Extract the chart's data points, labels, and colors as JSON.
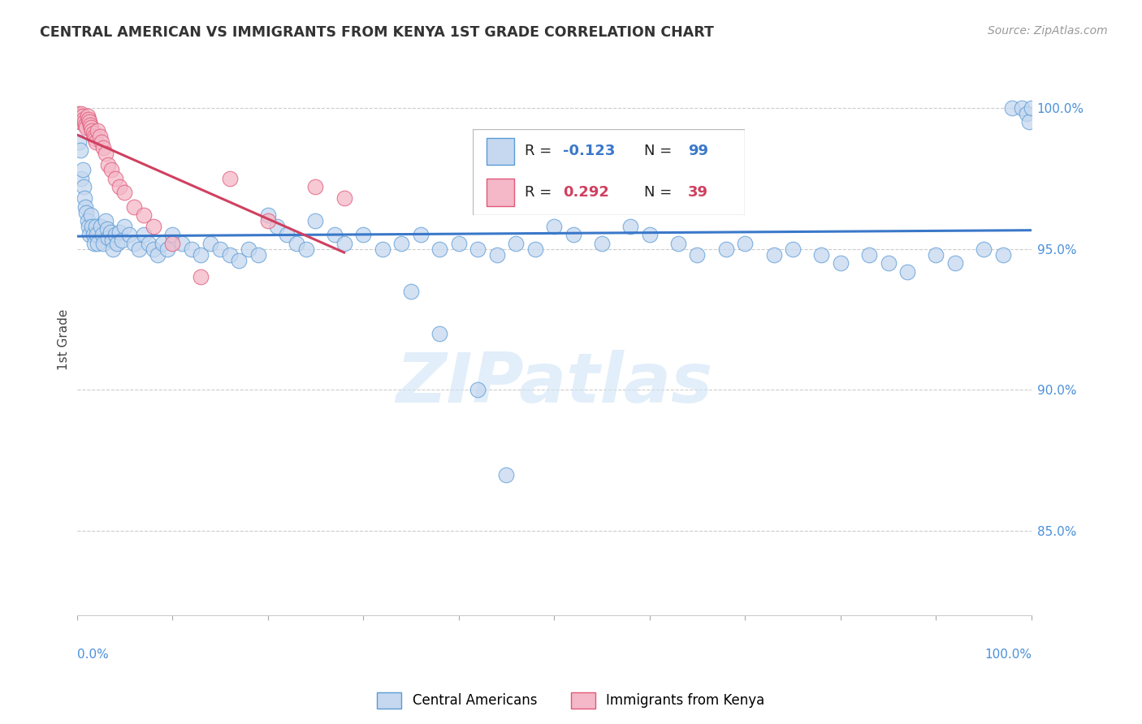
{
  "title": "CENTRAL AMERICAN VS IMMIGRANTS FROM KENYA 1ST GRADE CORRELATION CHART",
  "source": "Source: ZipAtlas.com",
  "ylabel": "1st Grade",
  "watermark": "ZIPatlas",
  "legend_blue_label": "Central Americans",
  "legend_pink_label": "Immigrants from Kenya",
  "R_blue": -0.123,
  "N_blue": 99,
  "R_pink": 0.292,
  "N_pink": 39,
  "blue_fill": "#c5d8f0",
  "blue_edge": "#5b9bd5",
  "pink_fill": "#f4b8c8",
  "pink_edge": "#e05878",
  "blue_line": "#3a78c9",
  "pink_line": "#d04060",
  "xmin": 0.0,
  "xmax": 1.0,
  "ymin": 0.82,
  "ymax": 1.016,
  "ytick_vals": [
    1.0,
    0.95,
    0.9,
    0.85
  ],
  "ytick_labels": [
    "100.0%",
    "95.0%",
    "90.0%",
    "85.0%"
  ],
  "blue_x": [
    0.002,
    0.003,
    0.004,
    0.005,
    0.006,
    0.007,
    0.008,
    0.009,
    0.01,
    0.011,
    0.012,
    0.013,
    0.015,
    0.016,
    0.017,
    0.018,
    0.02,
    0.021,
    0.022,
    0.025,
    0.027,
    0.028,
    0.03,
    0.032,
    0.033,
    0.035,
    0.037,
    0.038,
    0.04,
    0.042,
    0.045,
    0.047,
    0.05,
    0.055,
    0.06,
    0.065,
    0.07,
    0.075,
    0.08,
    0.085,
    0.09,
    0.095,
    0.1,
    0.11,
    0.12,
    0.13,
    0.14,
    0.15,
    0.16,
    0.17,
    0.18,
    0.19,
    0.2,
    0.21,
    0.22,
    0.23,
    0.24,
    0.25,
    0.27,
    0.28,
    0.3,
    0.32,
    0.34,
    0.36,
    0.38,
    0.4,
    0.42,
    0.44,
    0.46,
    0.48,
    0.5,
    0.52,
    0.55,
    0.58,
    0.6,
    0.63,
    0.65,
    0.68,
    0.7,
    0.73,
    0.75,
    0.78,
    0.8,
    0.83,
    0.85,
    0.87,
    0.9,
    0.92,
    0.95,
    0.97,
    0.98,
    0.99,
    0.995,
    0.998,
    1.0,
    0.35,
    0.38,
    0.42,
    0.45
  ],
  "blue_y": [
    0.988,
    0.995,
    0.985,
    0.975,
    0.978,
    0.972,
    0.968,
    0.965,
    0.963,
    0.96,
    0.958,
    0.955,
    0.962,
    0.958,
    0.955,
    0.952,
    0.958,
    0.955,
    0.952,
    0.958,
    0.955,
    0.952,
    0.96,
    0.957,
    0.954,
    0.956,
    0.953,
    0.95,
    0.955,
    0.952,
    0.956,
    0.953,
    0.958,
    0.955,
    0.952,
    0.95,
    0.955,
    0.952,
    0.95,
    0.948,
    0.952,
    0.95,
    0.955,
    0.952,
    0.95,
    0.948,
    0.952,
    0.95,
    0.948,
    0.946,
    0.95,
    0.948,
    0.962,
    0.958,
    0.955,
    0.952,
    0.95,
    0.96,
    0.955,
    0.952,
    0.955,
    0.95,
    0.952,
    0.955,
    0.95,
    0.952,
    0.95,
    0.948,
    0.952,
    0.95,
    0.958,
    0.955,
    0.952,
    0.958,
    0.955,
    0.952,
    0.948,
    0.95,
    0.952,
    0.948,
    0.95,
    0.948,
    0.945,
    0.948,
    0.945,
    0.942,
    0.948,
    0.945,
    0.95,
    0.948,
    1.0,
    1.0,
    0.998,
    0.995,
    1.0,
    0.935,
    0.92,
    0.9,
    0.87
  ],
  "pink_x": [
    0.001,
    0.002,
    0.003,
    0.004,
    0.005,
    0.006,
    0.007,
    0.008,
    0.009,
    0.01,
    0.011,
    0.012,
    0.013,
    0.014,
    0.015,
    0.016,
    0.017,
    0.018,
    0.019,
    0.02,
    0.022,
    0.024,
    0.026,
    0.028,
    0.03,
    0.033,
    0.036,
    0.04,
    0.045,
    0.05,
    0.06,
    0.07,
    0.08,
    0.1,
    0.13,
    0.16,
    0.2,
    0.25,
    0.28
  ],
  "pink_y": [
    0.998,
    0.997,
    0.996,
    0.995,
    0.998,
    0.997,
    0.996,
    0.995,
    0.994,
    0.993,
    0.997,
    0.996,
    0.995,
    0.994,
    0.993,
    0.992,
    0.991,
    0.99,
    0.989,
    0.988,
    0.992,
    0.99,
    0.988,
    0.986,
    0.984,
    0.98,
    0.978,
    0.975,
    0.972,
    0.97,
    0.965,
    0.962,
    0.958,
    0.952,
    0.94,
    0.975,
    0.96,
    0.972,
    0.968
  ]
}
